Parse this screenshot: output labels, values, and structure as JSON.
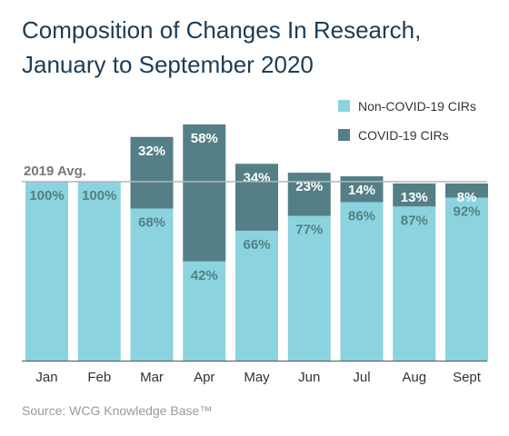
{
  "title_line1": "Composition of Changes In Research,",
  "title_line2": "January to September 2020",
  "source": "Source: WCG Knowledge Base™",
  "colors": {
    "non_covid": "#8bd3de",
    "covid": "#547f86",
    "avg_line": "#b5b5b5",
    "axis": "#555555",
    "text": "#333333",
    "title": "#1d3c55"
  },
  "chart_data": {
    "type": "bar",
    "stacked": true,
    "categories": [
      "Jan",
      "Feb",
      "Mar",
      "Apr",
      "May",
      "Jun",
      "Jul",
      "Aug",
      "Sept"
    ],
    "total_vs_2019_avg": [
      1.0,
      1.0,
      1.25,
      1.32,
      1.1,
      1.05,
      1.03,
      0.99,
      0.99
    ],
    "series": [
      {
        "name": "Non-COVID-19 CIRs",
        "values": [
          100,
          100,
          68,
          42,
          66,
          77,
          86,
          87,
          92
        ],
        "labels": [
          "100%",
          "100%",
          "68%",
          "42%",
          "66%",
          "77%",
          "86%",
          "87%",
          "92%"
        ]
      },
      {
        "name": "COVID-19 CIRs",
        "values": [
          0,
          0,
          32,
          58,
          34,
          23,
          14,
          13,
          8
        ],
        "labels": [
          "",
          "",
          "32%",
          "58%",
          "34%",
          "23%",
          "14%",
          "13%",
          "8%"
        ]
      }
    ],
    "reference_line": {
      "label": "2019 Avg.",
      "value": 1.0
    },
    "legend_position": "top-right",
    "grid": false
  }
}
